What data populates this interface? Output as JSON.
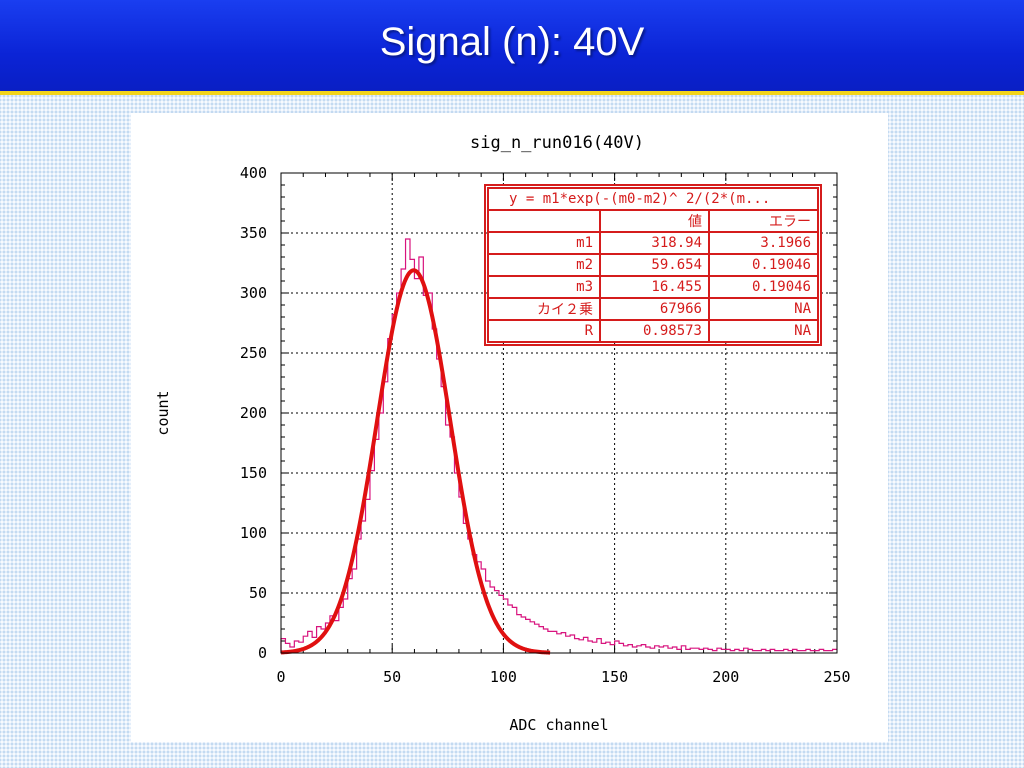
{
  "slide": {
    "title": "Signal (n):  40V"
  },
  "colors": {
    "title_bar": "#0b24d6",
    "title_underline": "#f2d41c",
    "histogram": "#d8137e",
    "fit_curve": "#e01010",
    "table": "#d51c1c",
    "grid": "#000000"
  },
  "chart_data": {
    "type": "line",
    "title": "sig_n_run016(40V)",
    "xlabel": "ADC channel",
    "ylabel": "count",
    "xlim": [
      0,
      250
    ],
    "ylim": [
      0,
      400
    ],
    "xticks": [
      0,
      50,
      100,
      150,
      200,
      250
    ],
    "yticks": [
      0,
      50,
      100,
      150,
      200,
      250,
      300,
      350,
      400
    ],
    "grid": true,
    "series": [
      {
        "style": "step histogram",
        "x": [
          0,
          2,
          4,
          6,
          8,
          10,
          12,
          14,
          16,
          18,
          20,
          22,
          24,
          26,
          28,
          30,
          32,
          34,
          36,
          38,
          40,
          42,
          44,
          46,
          48,
          50,
          52,
          54,
          56,
          58,
          60,
          62,
          64,
          66,
          68,
          70,
          72,
          74,
          76,
          78,
          80,
          82,
          84,
          86,
          88,
          90,
          92,
          94,
          96,
          98,
          100,
          102,
          104,
          106,
          108,
          110,
          112,
          114,
          116,
          118,
          120,
          122,
          124,
          126,
          128,
          130,
          132,
          134,
          136,
          138,
          140,
          142,
          144,
          146,
          148,
          150,
          152,
          154,
          156,
          158,
          160,
          162,
          164,
          166,
          168,
          170,
          172,
          174,
          176,
          178,
          180,
          182,
          184,
          186,
          188,
          190,
          192,
          194,
          196,
          198,
          200,
          202,
          204,
          206,
          208,
          210,
          212,
          214,
          216,
          218,
          220,
          222,
          224,
          226,
          228,
          230,
          232,
          234,
          236,
          238,
          240,
          242,
          244,
          246,
          248
        ],
        "values": [
          12,
          8,
          5,
          10,
          9,
          14,
          18,
          13,
          22,
          20,
          25,
          31,
          27,
          38,
          45,
          62,
          70,
          95,
          110,
          128,
          152,
          178,
          200,
          226,
          262,
          282,
          300,
          320,
          345,
          328,
          312,
          330,
          298,
          300,
          270,
          245,
          222,
          190,
          180,
          150,
          130,
          108,
          95,
          82,
          76,
          70,
          60,
          55,
          52,
          48,
          45,
          40,
          38,
          32,
          30,
          28,
          26,
          24,
          22,
          20,
          18,
          18,
          16,
          17,
          14,
          15,
          12,
          11,
          13,
          10,
          9,
          12,
          8,
          9,
          7,
          10,
          8,
          6,
          7,
          5,
          6,
          7,
          5,
          4,
          6,
          5,
          6,
          4,
          5,
          3,
          6,
          3,
          4,
          4,
          3,
          4,
          3,
          2,
          4,
          3,
          3,
          2,
          3,
          2,
          4,
          3,
          2,
          2,
          3,
          2,
          3,
          2,
          2,
          3,
          2,
          3,
          2,
          2,
          3,
          2,
          2,
          3,
          2,
          2,
          3
        ]
      },
      {
        "style": "fit curve",
        "formula": "m1*exp(-(x-m2)^2/(2*m3^2))",
        "m1": 318.94,
        "m2": 59.654,
        "m3": 16.455,
        "x_range": [
          0,
          121
        ]
      }
    ]
  },
  "fit_table": {
    "equation": "y = m1*exp(-(m0-m2)^ 2/(2*(m...",
    "header": [
      "",
      "値",
      "エラー"
    ],
    "rows": [
      [
        "m1",
        "318.94",
        "3.1966"
      ],
      [
        "m2",
        "59.654",
        "0.19046"
      ],
      [
        "m3",
        "16.455",
        "0.19046"
      ],
      [
        "カイ２乗",
        "67966",
        "NA"
      ],
      [
        "R",
        "0.98573",
        "NA"
      ]
    ]
  }
}
